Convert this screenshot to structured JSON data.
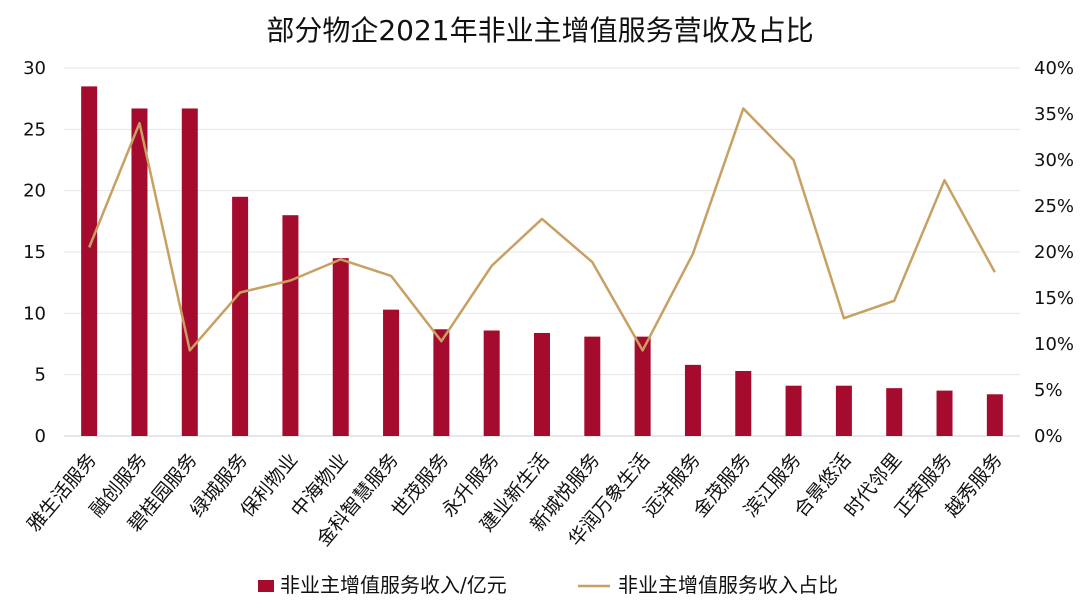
{
  "chart_data": {
    "type": "bar",
    "title": "部分物企2021年非业主增值服务营收及占比",
    "categories": [
      "雅生活服务",
      "融创服务",
      "碧桂园服务",
      "绿城服务",
      "保利物业",
      "中海物业",
      "金科智慧服务",
      "世茂服务",
      "永升服务",
      "建业新生活",
      "新城悦服务",
      "华润万象生活",
      "远洋服务",
      "金茂服务",
      "滨江服务",
      "合景悠活",
      "时代邻里",
      "正荣服务",
      "越秀服务"
    ],
    "series": [
      {
        "name": "非业主增值服务收入/亿元",
        "type": "bar",
        "axis": "left",
        "color": "#A50B2C",
        "values": [
          28.5,
          26.7,
          26.7,
          19.5,
          18.0,
          14.5,
          10.3,
          8.7,
          8.6,
          8.4,
          8.1,
          8.1,
          5.8,
          5.3,
          4.1,
          4.1,
          3.9,
          3.7,
          3.4
        ]
      },
      {
        "name": "非业主增值服务收入占比",
        "type": "line",
        "axis": "right",
        "color": "#C8A062",
        "values": [
          20.5,
          34.0,
          9.3,
          15.6,
          16.9,
          19.2,
          17.4,
          10.3,
          18.5,
          23.6,
          18.9,
          9.3,
          19.8,
          35.6,
          30.0,
          12.8,
          14.7,
          27.8,
          17.8
        ]
      }
    ],
    "y_left": {
      "min": 0,
      "max": 30,
      "ticks": [
        "0",
        "5",
        "10",
        "15",
        "20",
        "25",
        "30"
      ]
    },
    "y_right": {
      "min": 0,
      "max": 40,
      "ticks": [
        "0%",
        "5%",
        "10%",
        "15%",
        "20%",
        "25%",
        "30%",
        "35%",
        "40%"
      ]
    },
    "legend_position": "bottom",
    "grid": true
  }
}
